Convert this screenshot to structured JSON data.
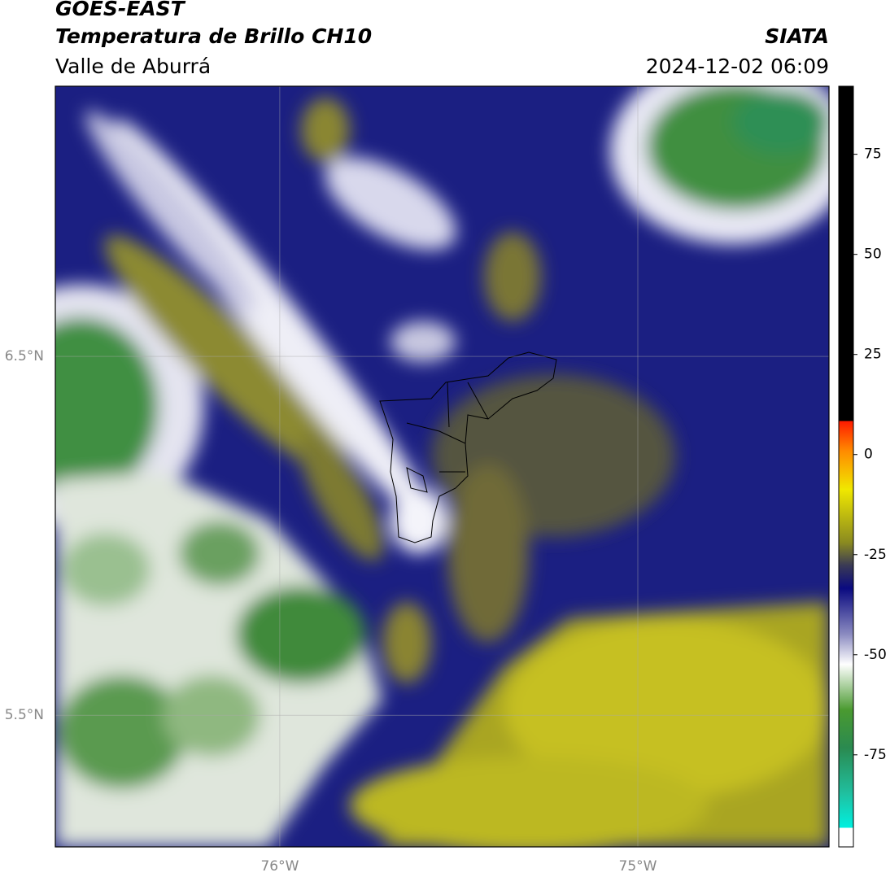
{
  "chart_data": {
    "type": "map",
    "title": "GOES-EAST",
    "subtitle": "Temperatura de Brillo CH10",
    "region": "Valle de Aburrá",
    "source": "SIATA",
    "timestamp": "2024-12-02 06:09",
    "xlim": [
      -76.627,
      -74.466
    ],
    "ylim": [
      5.133,
      7.253
    ],
    "xticks": [
      {
        "value": -76,
        "label": "76°W"
      },
      {
        "value": -75,
        "label": "75°W"
      }
    ],
    "yticks": [
      {
        "value": 6.5,
        "label": "6.5°N"
      },
      {
        "value": 5.5,
        "label": "5.5°N"
      }
    ],
    "grid": true,
    "colorbar": {
      "lim": [
        -98,
        92
      ],
      "ticks": [
        75,
        50,
        25,
        0,
        -25,
        -50,
        -75
      ]
    }
  }
}
